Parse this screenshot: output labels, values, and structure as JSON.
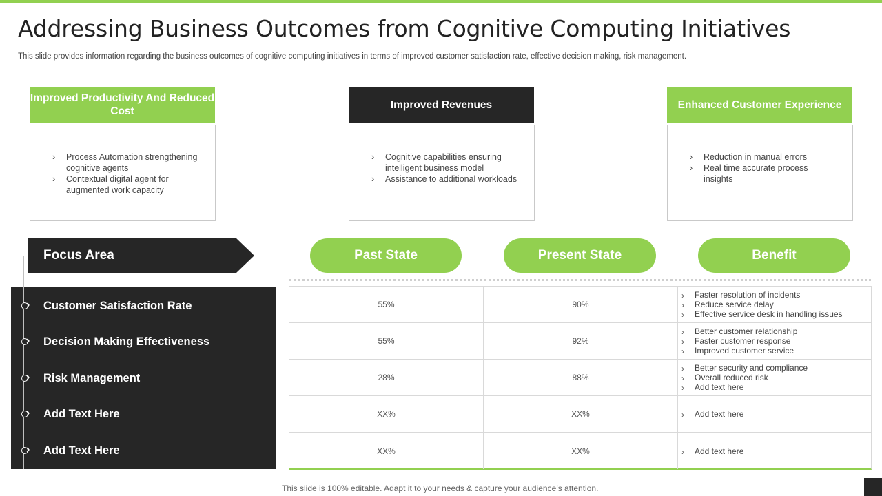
{
  "slide": {
    "title": "Addressing Business Outcomes from Cognitive Computing Initiatives",
    "subtitle": "This slide provides information regarding the business outcomes of cognitive computing initiatives in terms of improved customer satisfaction rate, effective decision making, risk management."
  },
  "cards": [
    {
      "heading": "Improved Productivity And Reduced Cost",
      "items": [
        "Process Automation strengthening cognitive agents",
        "Contextual digital agent for augmented work capacity"
      ]
    },
    {
      "heading": "Improved Revenues",
      "items": [
        "Cognitive capabilities ensuring intelligent business model",
        "Assistance to additional workloads"
      ]
    },
    {
      "heading": "Enhanced Customer Experience",
      "items": [
        "Reduction in manual errors",
        "Real time accurate process insights"
      ]
    }
  ],
  "table": {
    "focus_header": "Focus Area",
    "col_headers": [
      "Past State",
      "Present State",
      "Benefit"
    ],
    "rows": [
      {
        "area": "Customer Satisfaction Rate",
        "past": "55%",
        "present": "90%",
        "benefits": [
          "Faster resolution of incidents",
          "Reduce service delay",
          "Effective service desk in handling issues"
        ]
      },
      {
        "area": "Decision Making Effectiveness",
        "past": "55%",
        "present": "92%",
        "benefits": [
          "Better customer relationship",
          "Faster customer response",
          "Improved customer service"
        ]
      },
      {
        "area": "Risk Management",
        "past": "28%",
        "present": "88%",
        "benefits": [
          "Better security and compliance",
          "Overall reduced risk",
          "Add text here"
        ]
      },
      {
        "area": "Add Text Here",
        "past": "XX%",
        "present": "XX%",
        "benefits": [
          "Add text here"
        ]
      },
      {
        "area": "Add Text Here",
        "past": "XX%",
        "present": "XX%",
        "benefits": [
          "Add text here"
        ]
      }
    ]
  },
  "footer": "This slide is 100% editable. Adapt it to your needs & capture your audience’s attention.",
  "colors": {
    "accent": "#92d050",
    "dark": "#262626"
  }
}
